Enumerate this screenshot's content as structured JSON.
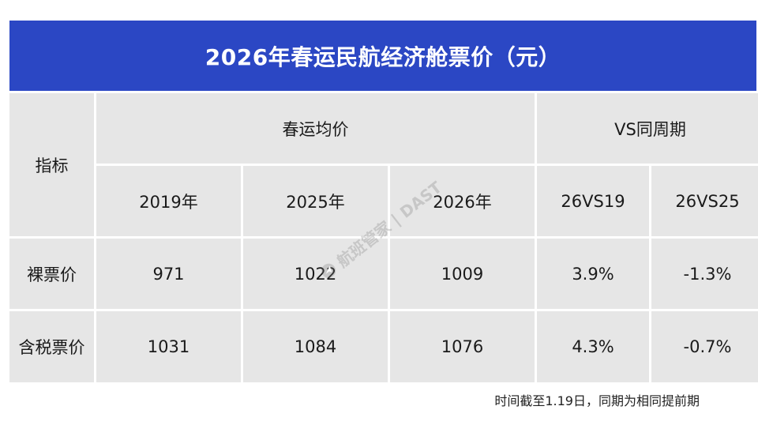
{
  "title": "2026年春运民航经济舱票价（元）",
  "header": {
    "indicator": "指标",
    "avg_group": "春运均价",
    "vs_group": "VS同周期",
    "columns": [
      "2019年",
      "2025年",
      "2026年",
      "26VS19",
      "26VS25"
    ]
  },
  "rows": [
    {
      "label": "裸票价",
      "values": [
        "971",
        "1022",
        "1009",
        "3.9%",
        "-1.3%"
      ]
    },
    {
      "label": "含税票价",
      "values": [
        "1031",
        "1084",
        "1076",
        "4.3%",
        "-0.7%"
      ]
    }
  ],
  "watermark": {
    "text": "航班管家 | DAST",
    "icon": "plane-logo-icon"
  },
  "footnote": "时间截至1.19日，同期为相同提前期",
  "colors": {
    "title_bg": "#2b47c4",
    "cell_bg": "#e6e6e6",
    "title_text": "#ffffff"
  }
}
